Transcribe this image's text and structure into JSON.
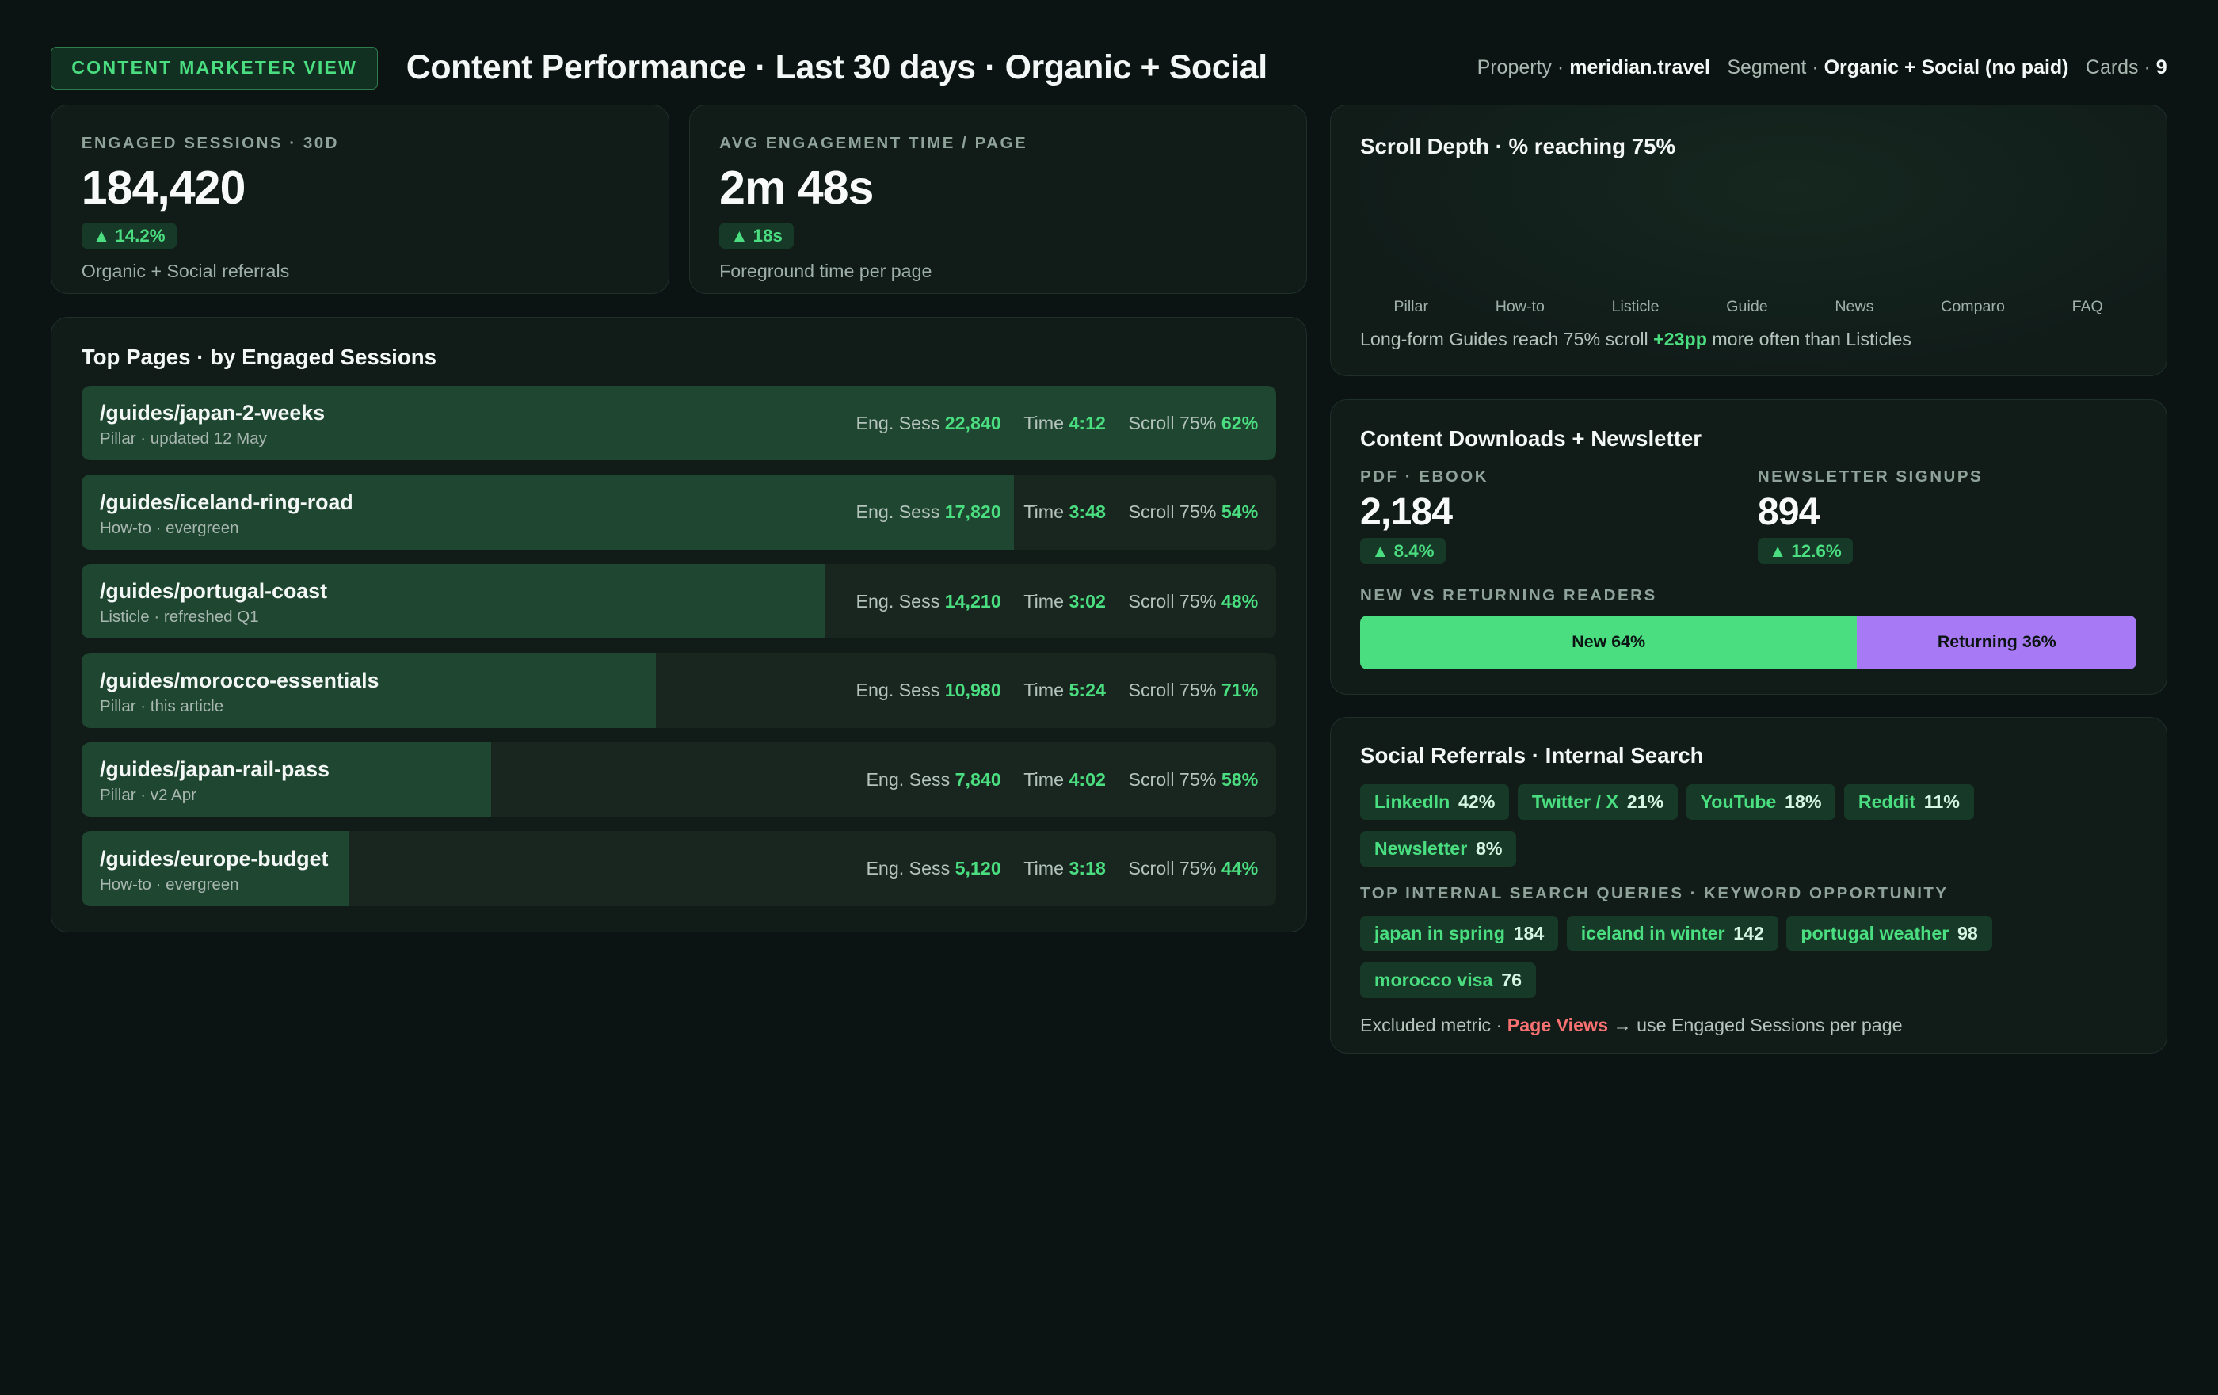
{
  "header": {
    "view_badge": "CONTENT MARKETER VIEW",
    "title": "Content Performance · Last 30 days · Organic + Social",
    "property_label": "Property ·",
    "property_value": "meridian.travel",
    "segment_label": "Segment ·",
    "segment_value": "Organic + Social (no paid)",
    "cards_label": "Cards ·",
    "cards_value": "9"
  },
  "kpis": [
    {
      "label": "ENGAGED SESSIONS · 30D",
      "value": "184,420",
      "delta": "▲ 14.2%",
      "note": "Organic + Social referrals"
    },
    {
      "label": "AVG ENGAGEMENT TIME / PAGE",
      "value": "2m 48s",
      "delta": "▲ 18s",
      "note": "Foreground time per page"
    }
  ],
  "top_pages": {
    "title": "Top Pages · by Engaged Sessions",
    "sess_label": "Eng. Sess",
    "time_label": "Time",
    "scroll_label": "Scroll 75%",
    "rows": [
      {
        "path": "/guides/japan-2-weeks",
        "sub": "Pillar · updated 12 May",
        "sessions": "22,840",
        "time": "4:12",
        "scroll": "62%",
        "share": 1.0
      },
      {
        "path": "/guides/iceland-ring-road",
        "sub": "How-to · evergreen",
        "sessions": "17,820",
        "time": "3:48",
        "scroll": "54%",
        "share": 0.78
      },
      {
        "path": "/guides/portugal-coast",
        "sub": "Listicle · refreshed Q1",
        "sessions": "14,210",
        "time": "3:02",
        "scroll": "48%",
        "share": 0.622
      },
      {
        "path": "/guides/morocco-essentials",
        "sub": "Pillar · this article",
        "sessions": "10,980",
        "time": "5:24",
        "scroll": "71%",
        "share": 0.481
      },
      {
        "path": "/guides/japan-rail-pass",
        "sub": "Pillar · v2 Apr",
        "sessions": "7,840",
        "time": "4:02",
        "scroll": "58%",
        "share": 0.343
      },
      {
        "path": "/guides/europe-budget",
        "sub": "How-to · evergreen",
        "sessions": "5,120",
        "time": "3:18",
        "scroll": "44%",
        "share": 0.224
      }
    ]
  },
  "scroll_depth": {
    "title": "Scroll Depth · % reaching 75%",
    "categories": [
      "Pillar",
      "How-to",
      "Listicle",
      "Guide",
      "News",
      "Comparo",
      "FAQ"
    ],
    "note_pre": "Long-form Guides reach 75% scroll ",
    "note_highlight": "+23pp",
    "note_post": " more often than Listicles"
  },
  "downloads": {
    "title": "Content Downloads + Newsletter",
    "pdf_label": "PDF · EBOOK",
    "pdf_value": "2,184",
    "pdf_delta": "▲ 8.4%",
    "news_label": "NEWSLETTER SIGNUPS",
    "news_value": "894",
    "news_delta": "▲ 12.6%",
    "split_label": "NEW VS RETURNING READERS",
    "new_label": "New 64%",
    "new_share": 0.64,
    "returning_label": "Returning 36%",
    "returning_share": 0.36
  },
  "social": {
    "title": "Social Referrals · Internal Search",
    "chips": [
      {
        "name": "LinkedIn",
        "value": "42%"
      },
      {
        "name": "Twitter / X",
        "value": "21%"
      },
      {
        "name": "YouTube",
        "value": "18%"
      },
      {
        "name": "Reddit",
        "value": "11%"
      },
      {
        "name": "Newsletter",
        "value": "8%"
      }
    ],
    "search_label": "TOP INTERNAL SEARCH QUERIES · KEYWORD OPPORTUNITY",
    "queries": [
      {
        "name": "japan in spring",
        "value": "184"
      },
      {
        "name": "iceland in winter",
        "value": "142"
      },
      {
        "name": "portugal weather",
        "value": "98"
      },
      {
        "name": "morocco visa",
        "value": "76"
      }
    ],
    "excluded_pre": "Excluded metric · ",
    "excluded_metric": "Page Views",
    "excluded_post": " → use Engaged Sessions per page"
  },
  "colors": {
    "accent": "#4ade80",
    "returning": "#a879f5",
    "excluded": "#f87171",
    "background": "#0b1412"
  }
}
